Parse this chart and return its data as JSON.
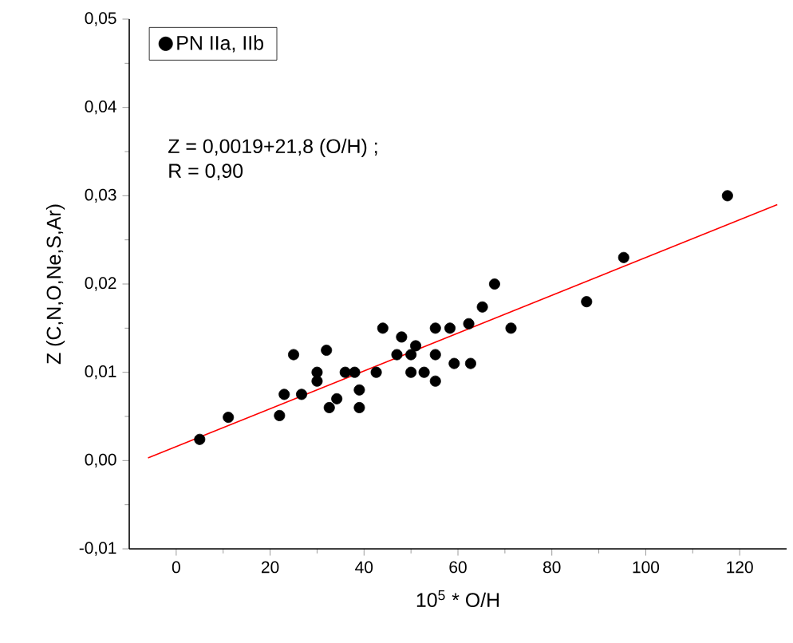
{
  "chart_data": {
    "type": "scatter",
    "xlabel": "10$^{5}$ * O/H",
    "ylabel": "Z (C,N,O,Ne,S,Ar)",
    "annotations": [
      "Z = 0,0019+21,8 (O/H) ;",
      "R = 0,90"
    ],
    "xlim": [
      -10,
      130
    ],
    "ylim": [
      -0.01,
      0.05
    ],
    "xticks": [
      0,
      20,
      40,
      60,
      80,
      100,
      120
    ],
    "yticks": [
      {
        "value": -0.01,
        "label": "-0,01"
      },
      {
        "value": 0,
        "label": "0,00"
      },
      {
        "value": 0.01,
        "label": "0,01"
      },
      {
        "value": 0.02,
        "label": "0,02"
      },
      {
        "value": 0.03,
        "label": "0,03"
      },
      {
        "value": 0.04,
        "label": "0,04"
      },
      {
        "value": 0.05,
        "label": "0,05"
      }
    ],
    "grid": false,
    "legend": "top left",
    "marker": "circle",
    "series": [
      {
        "name": "PN IIa, IIb",
        "color": "#000000",
        "x": [
          5,
          11.1,
          22,
          23,
          25,
          26.7,
          30,
          30,
          32,
          32.6,
          34.2,
          36,
          38,
          39,
          39,
          42.6,
          44,
          47,
          48,
          50,
          50,
          51,
          52.8,
          55.2,
          55.2,
          55.2,
          58.3,
          59.2,
          62.3,
          62.7,
          65.2,
          67.8,
          71.3,
          87.4,
          95.3,
          117.4
        ],
        "values": [
          0.0024,
          0.0049,
          0.0051,
          0.0075,
          0.012,
          0.0075,
          0.01,
          0.009,
          0.0125,
          0.006,
          0.007,
          0.01,
          0.01,
          0.008,
          0.006,
          0.01,
          0.015,
          0.012,
          0.014,
          0.012,
          0.01,
          0.013,
          0.01,
          0.015,
          0.012,
          0.009,
          0.015,
          0.011,
          0.0155,
          0.011,
          0.0174,
          0.02,
          0.015,
          0.018,
          0.023,
          0.03
        ]
      },
      {
        "type": "line",
        "color": "#ff0000",
        "marker": "none",
        "x": [
          -6,
          128
        ],
        "values": [
          0.0003,
          0.029
        ]
      }
    ]
  }
}
